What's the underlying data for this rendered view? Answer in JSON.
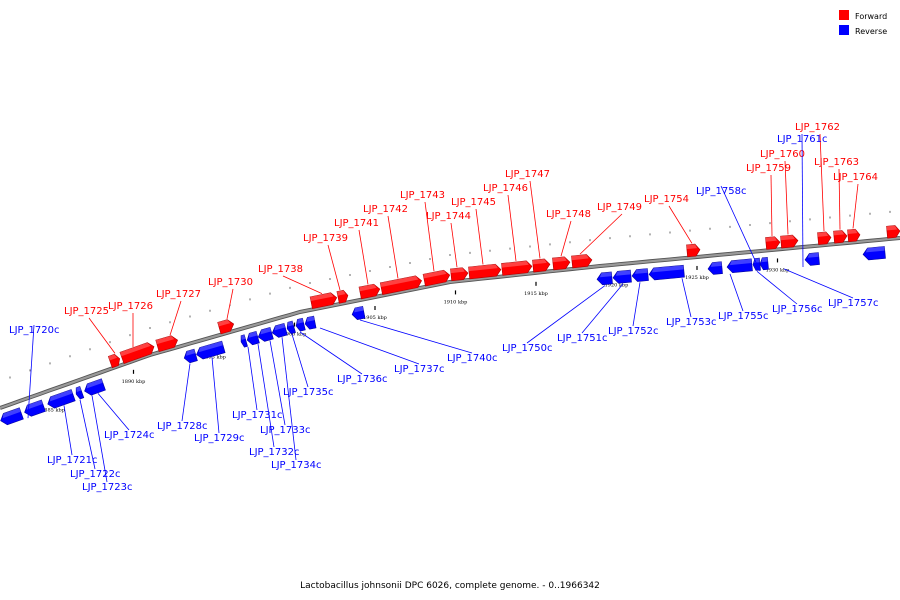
{
  "caption": "Lactobacillus johnsonii DPC 6026, complete genome. - 0..1966342",
  "legend": [
    {
      "label": "Forward",
      "color": "#ff0000"
    },
    {
      "label": "Reverse",
      "color": "#0000ff"
    }
  ],
  "colors": {
    "forward": "#ff0000",
    "reverse": "#0000ff",
    "axis": "#777777"
  },
  "axis_ticks": [
    {
      "kbp": 1885,
      "label": "1885 kbp"
    },
    {
      "kbp": 1890,
      "label": "1890 kbp"
    },
    {
      "kbp": 1895,
      "label": "1895 kbp"
    },
    {
      "kbp": 1900,
      "label": "1900 kbp"
    },
    {
      "kbp": 1905,
      "label": "1905 kbp"
    },
    {
      "kbp": 1910,
      "label": "1910 kbp"
    },
    {
      "kbp": 1915,
      "label": "1915 kbp"
    },
    {
      "kbp": 1920,
      "label": "1920 kbp"
    },
    {
      "kbp": 1925,
      "label": "1925 kbp"
    },
    {
      "kbp": 1930,
      "label": "1930 kbp"
    }
  ],
  "genes_forward": [
    "LJP_1725",
    "LJP_1726",
    "LJP_1727",
    "LJP_1730",
    "LJP_1738",
    "LJP_1739",
    "LJP_1741",
    "LJP_1742",
    "LJP_1743",
    "LJP_1744",
    "LJP_1745",
    "LJP_1746",
    "LJP_1747",
    "LJP_1748",
    "LJP_1749",
    "LJP_1754",
    "LJP_1759",
    "LJP_1760",
    "LJP_1762",
    "LJP_1763",
    "LJP_1764"
  ],
  "genes_reverse": [
    "LJP_1720c",
    "LJP_1721c",
    "LJP_1722c",
    "LJP_1723c",
    "LJP_1724c",
    "LJP_1728c",
    "LJP_1729c",
    "LJP_1731c",
    "LJP_1732c",
    "LJP_1733c",
    "LJP_1734c",
    "LJP_1735c",
    "LJP_1736c",
    "LJP_1737c",
    "LJP_1740c",
    "LJP_1750c",
    "LJP_1751c",
    "LJP_1752c",
    "LJP_1753c",
    "LJP_1755c",
    "LJP_1756c",
    "LJP_1757c",
    "LJP_1758c",
    "LJP_1761c"
  ]
}
